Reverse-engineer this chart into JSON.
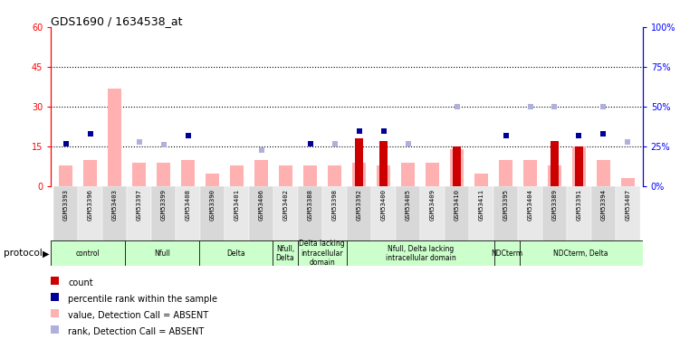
{
  "title": "GDS1690 / 1634538_at",
  "samples": [
    "GSM53393",
    "GSM53396",
    "GSM53403",
    "GSM53397",
    "GSM53399",
    "GSM53408",
    "GSM53390",
    "GSM53401",
    "GSM53406",
    "GSM53402",
    "GSM53388",
    "GSM53398",
    "GSM53392",
    "GSM53400",
    "GSM53405",
    "GSM53409",
    "GSM53410",
    "GSM53411",
    "GSM53395",
    "GSM53404",
    "GSM53389",
    "GSM53391",
    "GSM53394",
    "GSM53407"
  ],
  "count_values": [
    0,
    0,
    0,
    0,
    0,
    0,
    0,
    0,
    0,
    0,
    0,
    0,
    18,
    17,
    0,
    0,
    15,
    0,
    0,
    0,
    17,
    15,
    0,
    0
  ],
  "percentile_values": [
    27,
    33,
    0,
    0,
    0,
    32,
    0,
    0,
    0,
    0,
    27,
    0,
    35,
    35,
    0,
    0,
    0,
    0,
    32,
    0,
    0,
    32,
    33,
    0
  ],
  "bar_absent_values": [
    8,
    10,
    37,
    9,
    9,
    10,
    5,
    8,
    10,
    8,
    8,
    8,
    9,
    8,
    9,
    9,
    14,
    5,
    10,
    10,
    8,
    15,
    10,
    3
  ],
  "rank_absent_values": [
    27,
    0,
    0,
    28,
    26,
    0,
    0,
    0,
    23,
    0,
    0,
    27,
    0,
    0,
    27,
    0,
    50,
    0,
    0,
    50,
    50,
    0,
    50,
    28
  ],
  "groups": [
    {
      "label": "control",
      "start": 0,
      "end": 3,
      "color": "#ccffcc"
    },
    {
      "label": "Nfull",
      "start": 3,
      "end": 6,
      "color": "#ccffcc"
    },
    {
      "label": "Delta",
      "start": 6,
      "end": 9,
      "color": "#ccffcc"
    },
    {
      "label": "Nfull,\nDelta",
      "start": 9,
      "end": 10,
      "color": "#ccffcc"
    },
    {
      "label": "Delta lacking\nintracellular\ndomain",
      "start": 10,
      "end": 12,
      "color": "#ccffcc"
    },
    {
      "label": "Nfull, Delta lacking\nintracellular domain",
      "start": 12,
      "end": 18,
      "color": "#ccffcc"
    },
    {
      "label": "NDCterm",
      "start": 18,
      "end": 19,
      "color": "#ccffcc"
    },
    {
      "label": "NDCterm, Delta",
      "start": 19,
      "end": 24,
      "color": "#ccffcc"
    }
  ],
  "ylim_left": [
    0,
    60
  ],
  "ylim_right": [
    0,
    100
  ],
  "yticks_left": [
    0,
    15,
    30,
    45,
    60
  ],
  "yticks_right": [
    0,
    25,
    50,
    75,
    100
  ],
  "ytick_labels_left": [
    "0",
    "15",
    "30",
    "45",
    "60"
  ],
  "ytick_labels_right": [
    "0%",
    "25%",
    "50%",
    "75%",
    "100%"
  ],
  "count_color": "#cc0000",
  "percentile_color": "#000099",
  "absent_bar_color": "#ffb0b0",
  "absent_rank_color": "#b0b0dd",
  "grid_dotted_levels": [
    15,
    30,
    45
  ],
  "protocol_label": "protocol",
  "legend_items": [
    {
      "color": "#cc0000",
      "label": "count"
    },
    {
      "color": "#000099",
      "label": "percentile rank within the sample"
    },
    {
      "color": "#ffb0b0",
      "label": "value, Detection Call = ABSENT"
    },
    {
      "color": "#b0b0dd",
      "label": "rank, Detection Call = ABSENT"
    }
  ]
}
